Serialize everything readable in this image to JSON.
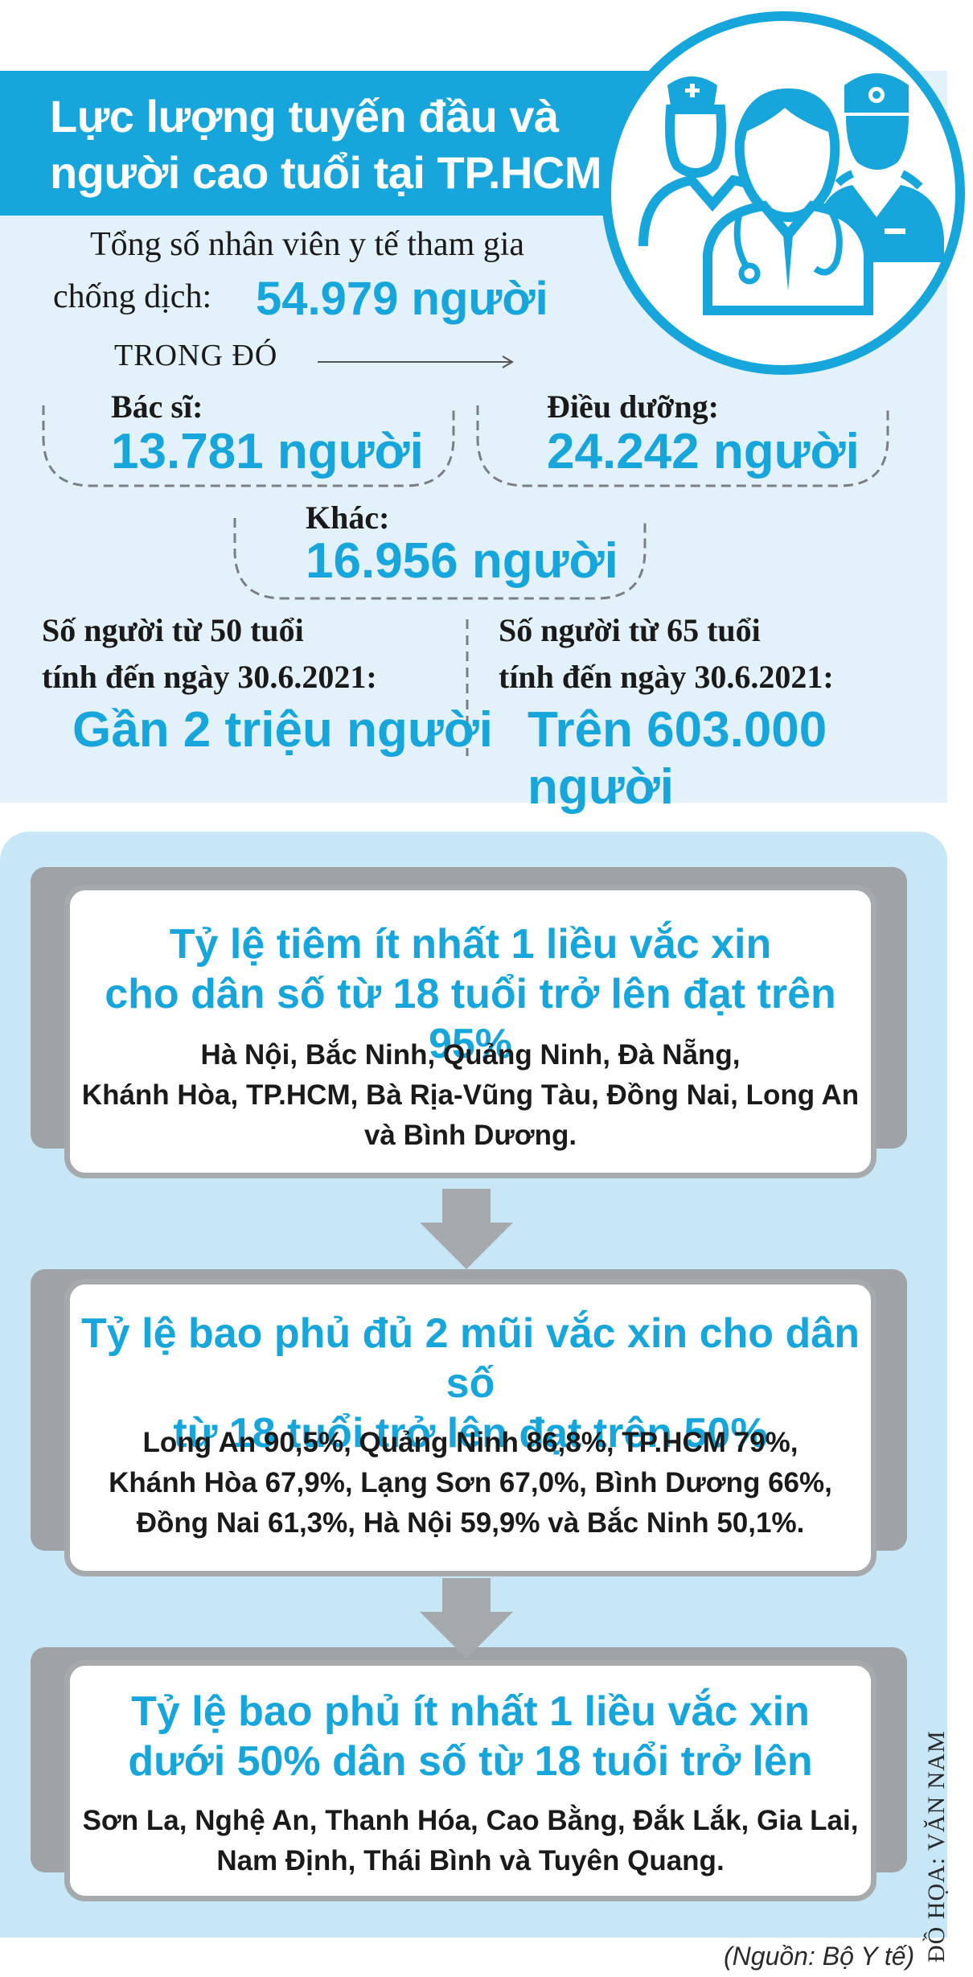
{
  "header": {
    "title_line1": "Lực lượng tuyến đầu và",
    "title_line2": "người cao tuổi tại TP.HCM",
    "icon": "medical-staff-icon"
  },
  "staff": {
    "total_label_line1": "Tổng số nhân viên y tế tham gia",
    "total_label_line2": "chống dịch:",
    "total_value": "54.979 người",
    "breakdown_label": "TRONG ĐÓ",
    "doctors_label": "Bác sĩ:",
    "doctors_value": "13.781 người",
    "nurses_label": "Điều dưỡng:",
    "nurses_value": "24.242 người",
    "other_label": "Khác:",
    "other_value": "16.956 người"
  },
  "elderly": {
    "age50_label_line1": "Số người từ 50 tuổi",
    "age50_label_line2": "tính đến ngày 30.6.2021:",
    "age50_value": "Gần 2 triệu người",
    "age65_label_line1": "Số người từ 65 tuổi",
    "age65_label_line2": "tính đến ngày 30.6.2021:",
    "age65_value": "Trên 603.000 người"
  },
  "cards": [
    {
      "title_line1": "Tỷ lệ tiêm ít nhất 1 liều vắc xin",
      "title_line2": "cho dân số từ 18 tuổi trở lên đạt trên 95%",
      "body_line1": "Hà Nội, Bắc Ninh, Quảng Ninh, Đà Nẵng,",
      "body_line2": "Khánh Hòa, TP.HCM, Bà Rịa-Vũng Tàu, Đồng Nai, Long An",
      "body_line3": "và Bình Dương."
    },
    {
      "title_line1": "Tỷ lệ bao phủ đủ 2 mũi vắc xin cho dân số",
      "title_line2": "từ 18 tuổi trở lên đạt trên 50%",
      "body_line1": "Long An 90,5%, Quảng Ninh 86,8%, TP.HCM 79%,",
      "body_line2": "Khánh Hòa 67,9%, Lạng Sơn 67,0%, Bình Dương 66%,",
      "body_line3": "Đồng Nai 61,3%, Hà Nội 59,9% và Bắc Ninh 50,1%."
    },
    {
      "title_line1": "Tỷ lệ bao phủ ít nhất 1 liều vắc xin",
      "title_line2": "dưới 50% dân số từ 18 tuổi trở lên",
      "body_line1": "Sơn La, Nghệ An, Thanh Hóa, Cao Bằng, Đắk Lắk, Gia Lai,",
      "body_line2": "Nam Định, Thái Bình và Tuyên Quang."
    }
  ],
  "credit": "ĐỒ HỌA: VĂN NAM",
  "source": "(Nguồn: Bộ Y tế)",
  "colors": {
    "accent": "#17a6dc",
    "panel_light": "#e3f1fa",
    "panel_blue": "#c7e6f6",
    "card_border": "#a6aaad"
  }
}
